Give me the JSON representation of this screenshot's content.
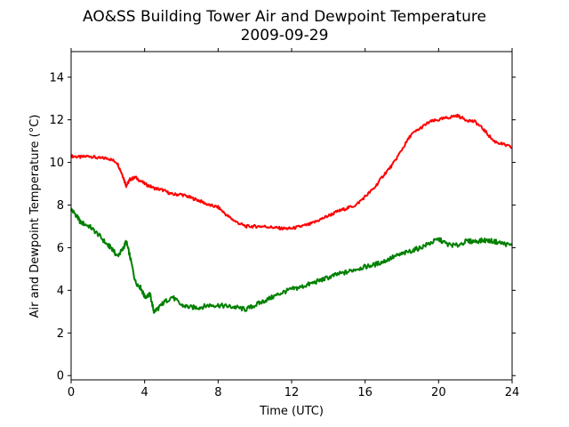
{
  "chart_data": {
    "type": "line",
    "title": "AO&SS Building Tower Air and Dewpoint Temperature",
    "subtitle": "2009-09-29",
    "xlabel": "Time (UTC)",
    "ylabel": "Air and Dewpoint Temperature (°C)",
    "xlim": [
      0,
      24
    ],
    "ylim": [
      -0.2,
      15.2
    ],
    "xticks": [
      0,
      4,
      8,
      12,
      16,
      20,
      24
    ],
    "yticks": [
      0,
      2,
      4,
      6,
      8,
      10,
      12,
      14
    ],
    "grid": false,
    "legend": "none",
    "series": [
      {
        "color": "#ff0000",
        "x": [
          0,
          0.5,
          1,
          1.5,
          2,
          2.5,
          2.8,
          3.0,
          3.2,
          3.5,
          4.0,
          4.5,
          5.0,
          5.5,
          6.0,
          6.5,
          7.0,
          7.5,
          8.0,
          8.5,
          9.0,
          9.5,
          10.0,
          10.5,
          11.0,
          11.5,
          12.0,
          12.5,
          13.0,
          13.5,
          14.0,
          14.5,
          15.0,
          15.5,
          16.0,
          16.5,
          17.0,
          17.5,
          18.0,
          18.5,
          19.0,
          19.5,
          20.0,
          20.5,
          21.0,
          21.5,
          22.0,
          22.5,
          23.0,
          23.5,
          24.0
        ],
        "y": [
          10.3,
          10.25,
          10.3,
          10.2,
          10.2,
          10.0,
          9.4,
          8.9,
          9.2,
          9.3,
          9.0,
          8.8,
          8.7,
          8.5,
          8.5,
          8.35,
          8.2,
          8.0,
          7.9,
          7.5,
          7.2,
          7.0,
          7.0,
          7.0,
          6.95,
          6.9,
          6.9,
          7.0,
          7.1,
          7.3,
          7.5,
          7.7,
          7.85,
          8.0,
          8.4,
          8.8,
          9.4,
          9.9,
          10.6,
          11.3,
          11.6,
          11.9,
          12.0,
          12.1,
          12.2,
          12.0,
          11.9,
          11.5,
          11.0,
          10.85,
          10.7
        ]
      },
      {
        "color": "#008000",
        "x": [
          0,
          0.3,
          0.5,
          1.0,
          1.5,
          2.0,
          2.2,
          2.5,
          2.8,
          3.0,
          3.2,
          3.5,
          3.8,
          4.0,
          4.3,
          4.5,
          4.8,
          5.0,
          5.5,
          6.0,
          6.5,
          7.0,
          7.5,
          8.0,
          8.5,
          9.0,
          9.5,
          10.0,
          10.5,
          11.0,
          11.5,
          12.0,
          12.5,
          13.0,
          13.5,
          14.0,
          14.5,
          15.0,
          15.5,
          16.0,
          16.5,
          17.0,
          17.5,
          18.0,
          18.5,
          19.0,
          19.5,
          20.0,
          20.5,
          21.0,
          21.5,
          22.0,
          22.5,
          23.0,
          23.5,
          24.0
        ],
        "y": [
          7.8,
          7.5,
          7.2,
          7.0,
          6.6,
          6.1,
          6.0,
          5.6,
          5.9,
          6.3,
          5.6,
          4.4,
          4.1,
          3.7,
          3.8,
          3.0,
          3.2,
          3.4,
          3.7,
          3.3,
          3.2,
          3.2,
          3.3,
          3.3,
          3.25,
          3.2,
          3.1,
          3.3,
          3.5,
          3.7,
          3.9,
          4.05,
          4.15,
          4.3,
          4.45,
          4.6,
          4.75,
          4.85,
          5.0,
          5.1,
          5.2,
          5.35,
          5.55,
          5.7,
          5.85,
          6.0,
          6.2,
          6.4,
          6.15,
          6.1,
          6.3,
          6.3,
          6.35,
          6.3,
          6.2,
          6.1
        ]
      }
    ]
  }
}
